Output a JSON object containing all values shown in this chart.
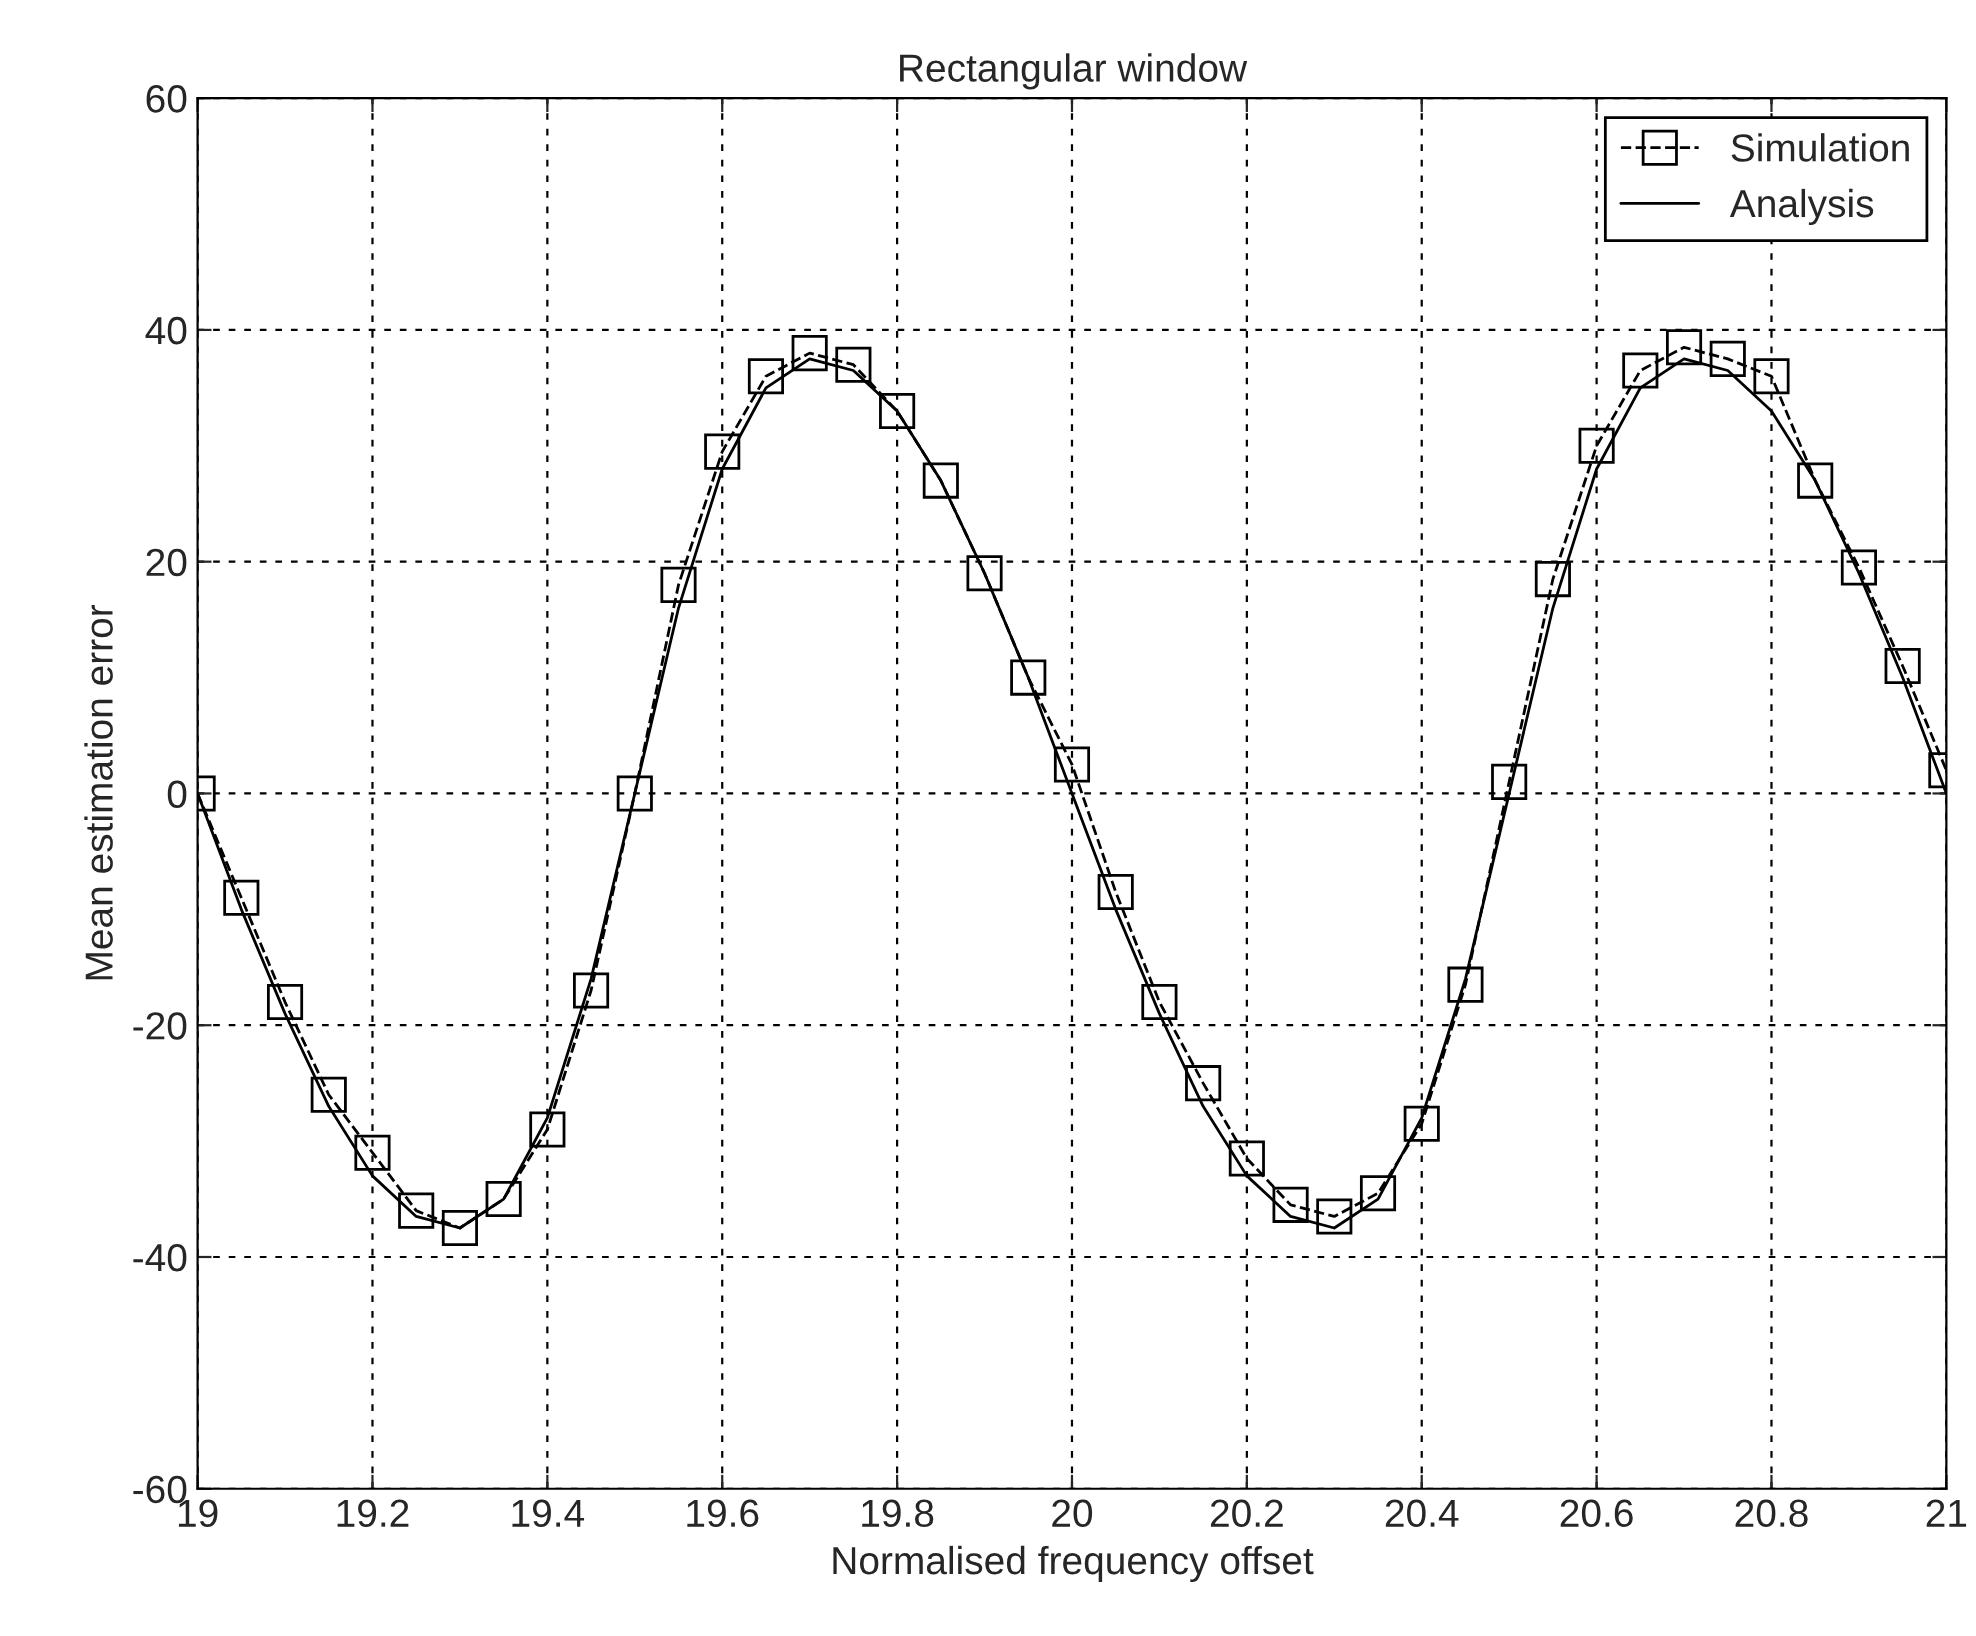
{
  "chart_data": {
    "type": "line",
    "title": "Rectangular window",
    "xlabel": "Normalised frequency offset",
    "ylabel": "Mean estimation error",
    "xlim": [
      19,
      21
    ],
    "xticks": [
      19,
      19.2,
      19.4,
      19.6,
      19.8,
      20,
      20.2,
      20.4,
      20.6,
      20.8,
      21
    ],
    "ylim": [
      -60,
      60
    ],
    "yticks": [
      -60,
      -40,
      -20,
      0,
      20,
      40,
      60
    ],
    "grid": true,
    "legend": "top right",
    "series": [
      {
        "name": "Simulation",
        "color": "#000000",
        "marker": "square",
        "line_style": "dashed",
        "x": [
          19,
          19.05,
          19.1,
          19.15,
          19.2,
          19.25,
          19.3,
          19.35,
          19.4,
          19.45,
          19.5,
          19.55,
          19.6,
          19.65,
          19.7,
          19.75,
          19.8,
          19.85,
          19.9,
          19.95,
          20,
          20.05,
          20.1,
          20.15,
          20.2,
          20.25,
          20.3,
          20.35,
          20.4,
          20.45,
          20.5,
          20.55,
          20.6,
          20.65,
          20.7,
          20.75,
          20.8,
          20.85,
          20.9,
          20.95,
          21
        ],
        "values": [
          0,
          -9,
          -18,
          -26,
          -31,
          -36,
          -37.5,
          -35,
          -29,
          -17,
          0,
          18,
          29.5,
          36,
          38,
          37,
          33,
          27,
          19,
          10,
          2.5,
          -8.5,
          -18,
          -25,
          -31.5,
          -35.5,
          -36.5,
          -34.5,
          -28.5,
          -16.5,
          1,
          18.5,
          30,
          36.5,
          38.5,
          37.5,
          36,
          27,
          19.5,
          11,
          2
        ]
      },
      {
        "name": "Analysis",
        "color": "#000000",
        "marker": "none",
        "line_style": "solid",
        "x": [
          19,
          19.05,
          19.1,
          19.15,
          19.2,
          19.25,
          19.3,
          19.35,
          19.4,
          19.45,
          19.5,
          19.55,
          19.6,
          19.65,
          19.7,
          19.75,
          19.8,
          19.85,
          19.9,
          19.95,
          20,
          20.05,
          20.1,
          20.15,
          20.2,
          20.25,
          20.3,
          20.35,
          20.4,
          20.45,
          20.5,
          20.55,
          20.6,
          20.65,
          20.7,
          20.75,
          20.8,
          20.85,
          20.9,
          20.95,
          21
        ],
        "values": [
          0,
          -10,
          -19,
          -27,
          -33,
          -36.5,
          -37.5,
          -35,
          -28,
          -16,
          0,
          16,
          28,
          35,
          37.5,
          36.5,
          33,
          27,
          19,
          10,
          0,
          -10,
          -19,
          -27,
          -33,
          -36.5,
          -37.5,
          -35,
          -28,
          -16,
          0,
          16,
          28,
          35,
          37.5,
          36.5,
          33,
          27,
          19,
          10,
          0
        ]
      }
    ]
  }
}
